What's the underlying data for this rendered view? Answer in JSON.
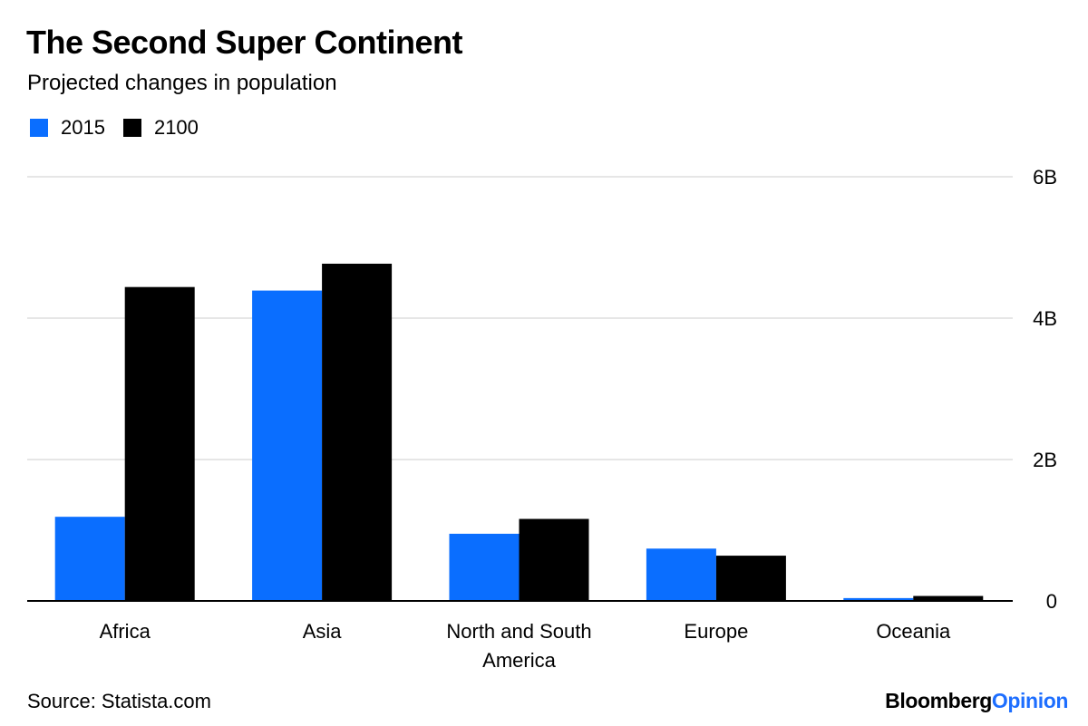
{
  "chart_data": {
    "type": "bar",
    "title": "The Second Super Continent",
    "subtitle": "Projected changes in population",
    "categories": [
      [
        "Africa"
      ],
      [
        "Asia"
      ],
      [
        "North and South",
        "America"
      ],
      [
        "Europe"
      ],
      [
        "Oceania"
      ]
    ],
    "series": [
      {
        "name": "2015",
        "color": "#0a6eff",
        "values": [
          1.19,
          4.39,
          0.95,
          0.74,
          0.04
        ]
      },
      {
        "name": "2100",
        "color": "#000000",
        "values": [
          4.44,
          4.77,
          1.16,
          0.64,
          0.07
        ]
      }
    ],
    "ylim": [
      0,
      6
    ],
    "yticks": [
      {
        "value": 0,
        "label": "0"
      },
      {
        "value": 2,
        "label": "2B"
      },
      {
        "value": 4,
        "label": "4B"
      },
      {
        "value": 6,
        "label": "6B"
      }
    ],
    "y_axis_side": "right",
    "grid": true,
    "legend_position": "top-left"
  },
  "footer": {
    "source": "Source: Statista.com",
    "brand_main": "Bloomberg",
    "brand_accent": "Opinion"
  }
}
